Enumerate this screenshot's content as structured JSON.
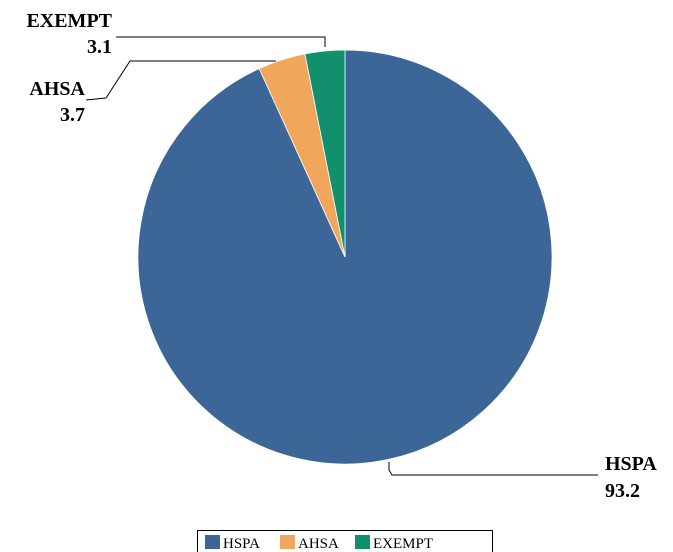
{
  "chart_data": {
    "type": "pie",
    "categories": [
      "HSPA",
      "AHSA",
      "EXEMPT"
    ],
    "values": [
      93.2,
      3.7,
      3.1
    ],
    "colors": [
      "#3d6698",
      "#f0a65b",
      "#12906e"
    ],
    "data_labels": [
      {
        "name": "HSPA",
        "value": "93.2"
      },
      {
        "name": "AHSA",
        "value": "3.7"
      },
      {
        "name": "EXEMPT",
        "value": "3.1"
      }
    ],
    "legend": {
      "placement": "bottom",
      "entries": [
        "HSPA",
        "AHSA",
        "EXEMPT"
      ]
    }
  }
}
